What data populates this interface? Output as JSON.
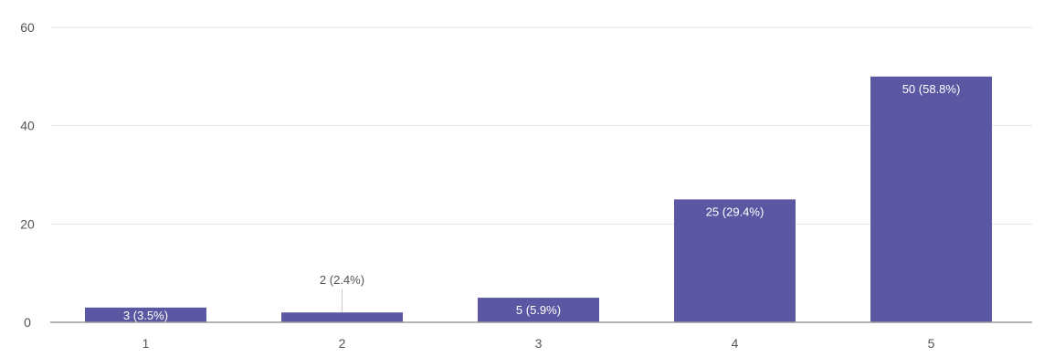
{
  "chart_data": {
    "type": "bar",
    "title": "",
    "xlabel": "",
    "ylabel": "",
    "categories": [
      "1",
      "2",
      "3",
      "4",
      "5"
    ],
    "values": [
      3,
      2,
      5,
      25,
      50
    ],
    "data_labels": [
      "3 (3.5%)",
      "2 (2.4%)",
      "5 (5.9%)",
      "25 (29.4%)",
      "50 (58.8%)"
    ],
    "ylim": [
      0,
      60
    ],
    "yticks": [
      0,
      20,
      40,
      60
    ],
    "ytick_labels": [
      "0",
      "20",
      "40",
      "60"
    ],
    "grid": true,
    "legend": "none",
    "colors": {
      "bar": "#5b57a2",
      "grid": "#e6e6e6",
      "axis": "#9a9a9a",
      "label_dark": "#555555",
      "label_light": "#ffffff"
    }
  }
}
